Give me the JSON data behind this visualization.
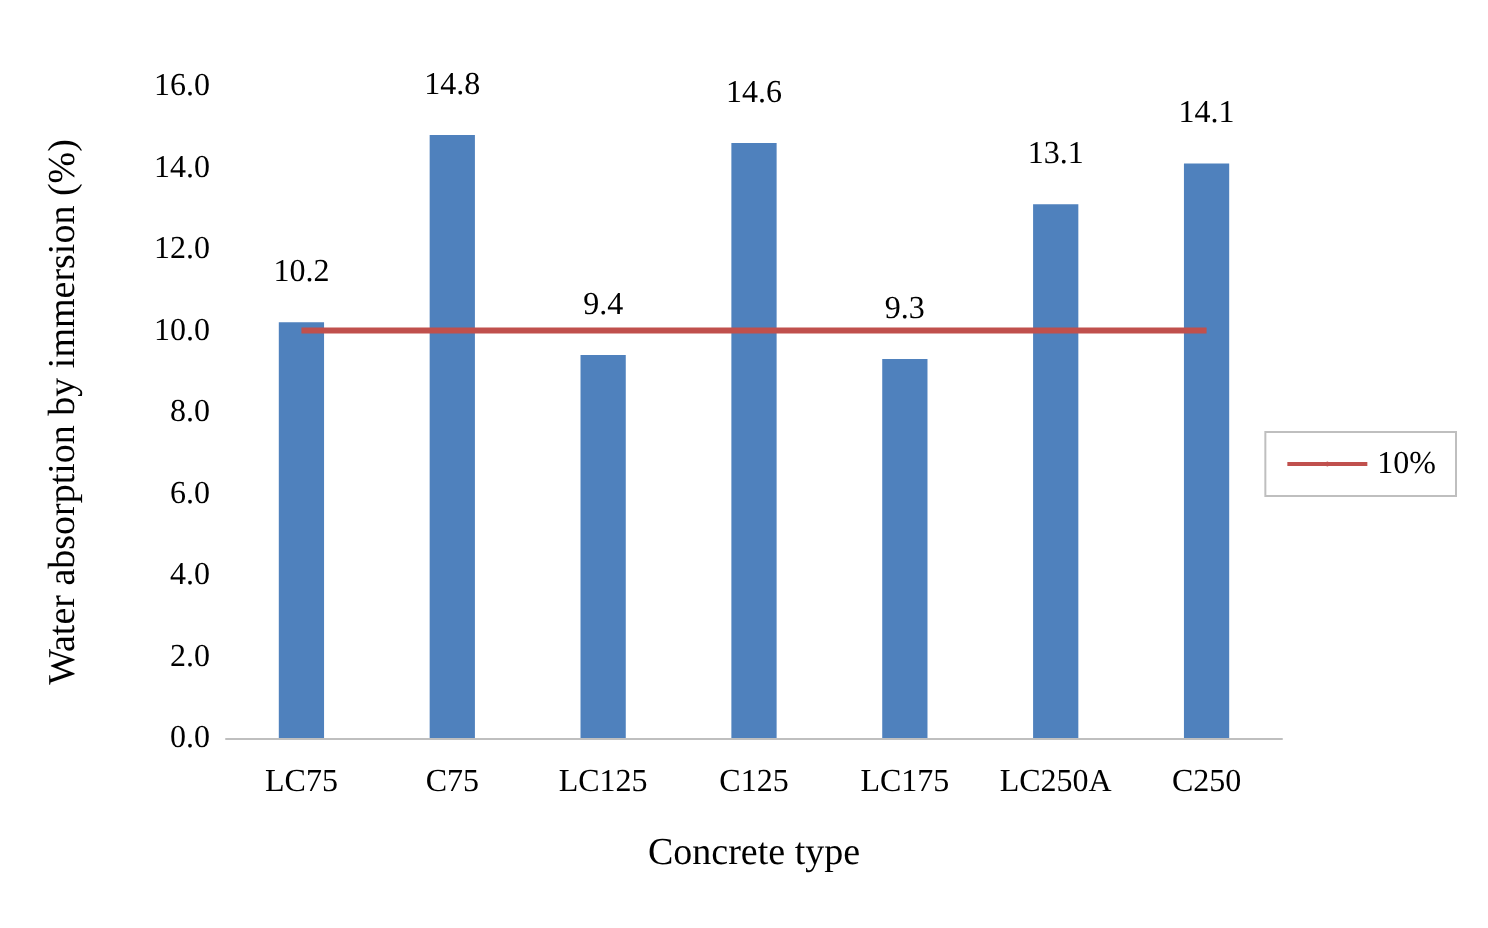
{
  "chart_data": {
    "type": "bar",
    "xlabel": "Concrete type",
    "ylabel": "Water absorption by immersion (%)",
    "categories": [
      "LC75",
      "C75",
      "LC125",
      "C125",
      "LC175",
      "LC250A",
      "C250"
    ],
    "series": [
      {
        "color": "#4f81bd",
        "values": [
          10.2,
          14.8,
          9.4,
          14.6,
          9.3,
          13.1,
          14.1
        ],
        "value_labels": [
          "10.2",
          "14.8",
          "9.4",
          "14.6",
          "9.3",
          "13.1",
          "14.1"
        ]
      },
      {
        "type": "line",
        "name": "10%",
        "color": "#c0504d",
        "values": [
          10,
          10,
          10,
          10,
          10,
          10,
          10
        ],
        "marker": "none"
      }
    ],
    "ylim": [
      0,
      16
    ],
    "yticks": [
      {
        "value": 0,
        "label": "0.0"
      },
      {
        "value": 2,
        "label": "2.0"
      },
      {
        "value": 4,
        "label": "4.0"
      },
      {
        "value": 6,
        "label": "6.0"
      },
      {
        "value": 8,
        "label": "8.0"
      },
      {
        "value": 10,
        "label": "10.0"
      },
      {
        "value": 12,
        "label": "12.0"
      },
      {
        "value": 14,
        "label": "14.0"
      },
      {
        "value": 16,
        "label": "16.0"
      }
    ],
    "grid": false,
    "legend": "right"
  }
}
